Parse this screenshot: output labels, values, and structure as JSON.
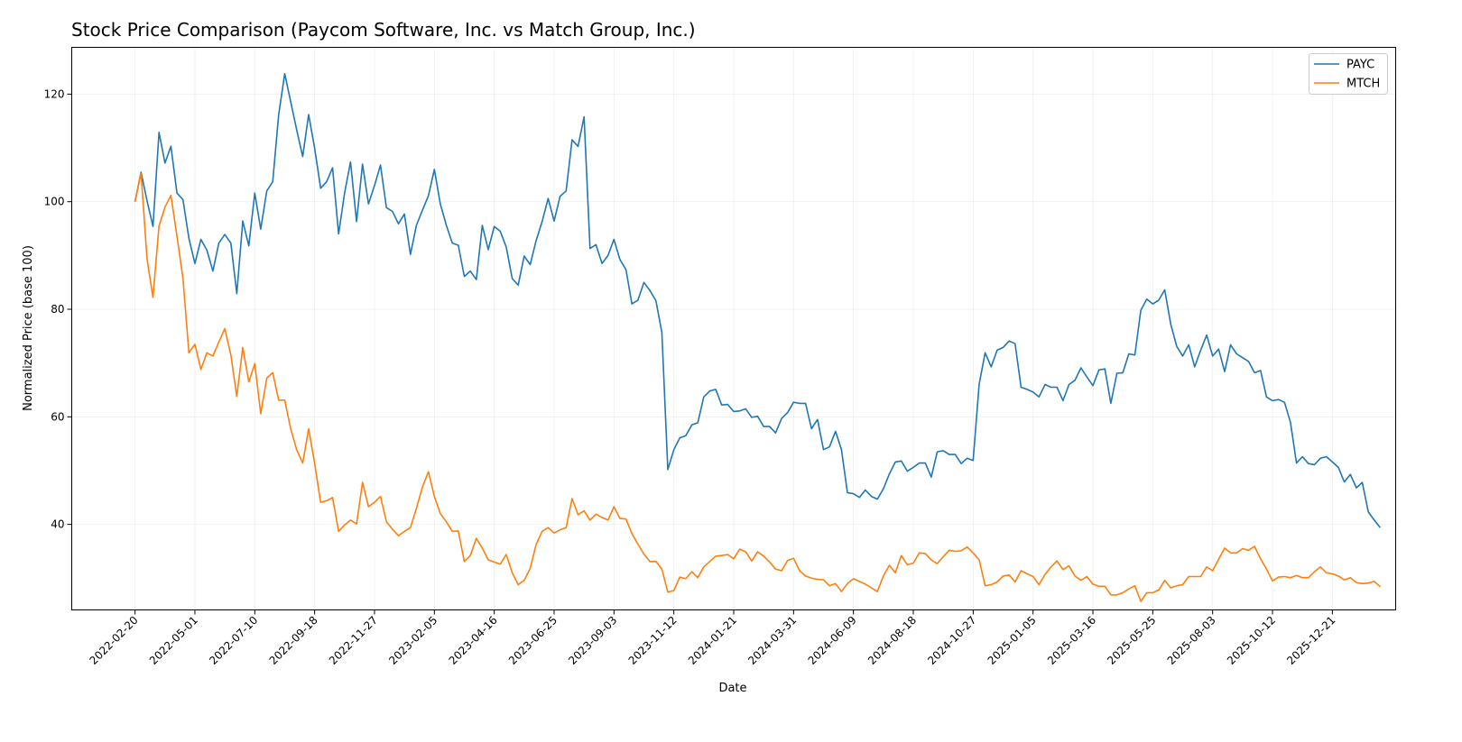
{
  "chart_data": {
    "type": "line",
    "title": "Stock Price Comparison (Paycom Software, Inc. vs Match Group, Inc.)",
    "xlabel": "Date",
    "ylabel": "Normalized Price (base 100)",
    "xlim": [
      "2021-12-08",
      "2026-03-05"
    ],
    "ylim": [
      24.1,
      128.7
    ],
    "grid": true,
    "legend_position": "top-right",
    "x_ticks": [
      "2022-02-20",
      "2022-05-01",
      "2022-07-10",
      "2022-09-18",
      "2022-11-27",
      "2023-02-05",
      "2023-04-16",
      "2023-06-25",
      "2023-09-03",
      "2023-11-12",
      "2024-01-21",
      "2024-03-31",
      "2024-06-09",
      "2024-08-18",
      "2024-10-27",
      "2025-01-05",
      "2025-03-16",
      "2025-05-25",
      "2025-08-03",
      "2025-10-12",
      "2025-12-21"
    ],
    "y_ticks": [
      40,
      60,
      80,
      100,
      120
    ],
    "x": [
      "2022-02-20",
      "2022-02-27",
      "2022-03-06",
      "2022-03-13",
      "2022-03-20",
      "2022-03-27",
      "2022-04-03",
      "2022-04-10",
      "2022-04-17",
      "2022-04-24",
      "2022-05-01",
      "2022-05-08",
      "2022-05-15",
      "2022-05-22",
      "2022-05-29",
      "2022-06-05",
      "2022-06-12",
      "2022-06-19",
      "2022-06-26",
      "2022-07-03",
      "2022-07-10",
      "2022-07-17",
      "2022-07-24",
      "2022-07-31",
      "2022-08-07",
      "2022-08-14",
      "2022-08-21",
      "2022-08-28",
      "2022-09-04",
      "2022-09-11",
      "2022-09-18",
      "2022-09-25",
      "2022-10-02",
      "2022-10-09",
      "2022-10-16",
      "2022-10-23",
      "2022-10-30",
      "2022-11-06",
      "2022-11-13",
      "2022-11-20",
      "2022-11-27",
      "2022-12-04",
      "2022-12-11",
      "2022-12-18",
      "2022-12-25",
      "2023-01-01",
      "2023-01-08",
      "2023-01-15",
      "2023-01-22",
      "2023-01-29",
      "2023-02-05",
      "2023-02-12",
      "2023-02-19",
      "2023-02-26",
      "2023-03-05",
      "2023-03-12",
      "2023-03-19",
      "2023-03-26",
      "2023-04-02",
      "2023-04-09",
      "2023-04-16",
      "2023-04-23",
      "2023-04-30",
      "2023-05-07",
      "2023-05-14",
      "2023-05-21",
      "2023-05-28",
      "2023-06-04",
      "2023-06-11",
      "2023-06-18",
      "2023-06-25",
      "2023-07-02",
      "2023-07-09",
      "2023-07-16",
      "2023-07-23",
      "2023-07-30",
      "2023-08-06",
      "2023-08-13",
      "2023-08-20",
      "2023-08-27",
      "2023-09-03",
      "2023-09-10",
      "2023-09-17",
      "2023-09-24",
      "2023-10-01",
      "2023-10-08",
      "2023-10-15",
      "2023-10-22",
      "2023-10-29",
      "2023-11-05",
      "2023-11-12",
      "2023-11-19",
      "2023-11-26",
      "2023-12-03",
      "2023-12-10",
      "2023-12-17",
      "2023-12-24",
      "2023-12-31",
      "2024-01-07",
      "2024-01-14",
      "2024-01-21",
      "2024-01-28",
      "2024-02-04",
      "2024-02-11",
      "2024-02-18",
      "2024-02-25",
      "2024-03-03",
      "2024-03-10",
      "2024-03-17",
      "2024-03-24",
      "2024-03-31",
      "2024-04-07",
      "2024-04-14",
      "2024-04-21",
      "2024-04-28",
      "2024-05-05",
      "2024-05-12",
      "2024-05-19",
      "2024-05-26",
      "2024-06-02",
      "2024-06-09",
      "2024-06-16",
      "2024-06-23",
      "2024-06-30",
      "2024-07-07",
      "2024-07-14",
      "2024-07-21",
      "2024-07-28",
      "2024-08-04",
      "2024-08-11",
      "2024-08-18",
      "2024-08-25",
      "2024-09-01",
      "2024-09-08",
      "2024-09-15",
      "2024-09-22",
      "2024-09-29",
      "2024-10-06",
      "2024-10-13",
      "2024-10-20",
      "2024-10-27",
      "2024-11-03",
      "2024-11-10",
      "2024-11-17",
      "2024-11-24",
      "2024-12-01",
      "2024-12-08",
      "2024-12-15",
      "2024-12-22",
      "2024-12-29",
      "2025-01-05",
      "2025-01-12",
      "2025-01-19",
      "2025-01-26",
      "2025-02-02",
      "2025-02-09",
      "2025-02-16",
      "2025-02-23",
      "2025-03-02",
      "2025-03-09",
      "2025-03-16",
      "2025-03-23",
      "2025-03-30",
      "2025-04-06",
      "2025-04-13",
      "2025-04-20",
      "2025-04-27",
      "2025-05-04",
      "2025-05-11",
      "2025-05-18",
      "2025-05-25",
      "2025-06-01",
      "2025-06-08",
      "2025-06-15",
      "2025-06-22",
      "2025-06-29",
      "2025-07-06",
      "2025-07-13",
      "2025-07-20",
      "2025-07-27",
      "2025-08-03",
      "2025-08-10",
      "2025-08-17",
      "2025-08-24",
      "2025-08-31",
      "2025-09-07",
      "2025-09-14",
      "2025-09-21",
      "2025-09-28",
      "2025-10-05",
      "2025-10-12",
      "2025-10-19",
      "2025-10-26",
      "2025-11-02",
      "2025-11-09",
      "2025-11-16",
      "2025-11-23",
      "2025-11-30",
      "2025-12-07",
      "2025-12-14",
      "2025-12-21",
      "2025-12-28",
      "2026-01-04",
      "2026-01-11",
      "2026-01-18",
      "2026-01-25",
      "2026-02-01",
      "2026-02-08",
      "2026-02-15"
    ],
    "series": [
      {
        "name": "PAYC",
        "color": "#1f77b4",
        "values": [
          100,
          105.5,
          100.2,
          95.4,
          112.9,
          107.2,
          110.3,
          101.6,
          100.4,
          93.2,
          88.5,
          93,
          91,
          87.1,
          92.3,
          93.9,
          92.3,
          82.9,
          96.4,
          91.8,
          101.6,
          94.9,
          102,
          103.7,
          116.2,
          123.8,
          118.6,
          113.4,
          108.4,
          116.2,
          110,
          102.5,
          103.7,
          106.3,
          94,
          101.6,
          107.4,
          96.3,
          107,
          99.6,
          103,
          106.8,
          98.9,
          98.2,
          95.9,
          97.7,
          90.2,
          95.6,
          98.4,
          101.1,
          106,
          99.6,
          95.6,
          92.3,
          91.9,
          86.1,
          87.1,
          85.5,
          95.6,
          91.1,
          95.4,
          94.5,
          91.6,
          85.7,
          84.5,
          89.9,
          88.3,
          92.8,
          96.3,
          100.6,
          96.4,
          101,
          102,
          111.5,
          110.3,
          115.8,
          91.3,
          92,
          88.5,
          90,
          93,
          89.2,
          87.4,
          81,
          81.7,
          85,
          83.5,
          81.6,
          75.7,
          50.2,
          53.9,
          56.1,
          56.5,
          58.5,
          58.9,
          63.7,
          64.8,
          65.1,
          62.2,
          62.3,
          61,
          61.1,
          61.5,
          59.9,
          60.1,
          58.2,
          58.2,
          57,
          59.7,
          60.8,
          62.7,
          62.5,
          62.5,
          57.8,
          59.5,
          53.9,
          54.4,
          57.3,
          53.9,
          45.9,
          45.7,
          45,
          46.4,
          45.2,
          44.7,
          46.6,
          49.4,
          51.6,
          51.8,
          49.9,
          50.6,
          51.4,
          51.4,
          48.8,
          53.5,
          53.7,
          53,
          53,
          51.3,
          52.3,
          51.9,
          66.1,
          71.9,
          69.3,
          72.4,
          72.9,
          74.1,
          73.6,
          65.5,
          65.1,
          64.6,
          63.7,
          66,
          65.5,
          65.5,
          63,
          66,
          66.8,
          69.1,
          67.4,
          65.8,
          68.7,
          68.9,
          62.5,
          68.1,
          68.2,
          71.7,
          71.5,
          79.8,
          81.9,
          81,
          81.7,
          83.6,
          77.2,
          73.1,
          71.3,
          73.4,
          69.3,
          72.4,
          75.2,
          71.3,
          72.6,
          68.4,
          73.4,
          71.7,
          71,
          70.3,
          68.2,
          68.6,
          63.7,
          63,
          63.2,
          62.7,
          59,
          51.4,
          52.6,
          51.3,
          51.1,
          52.3,
          52.6,
          51.6,
          50.6,
          47.9,
          49.3,
          46.8,
          47.8,
          42.3,
          40.8,
          39.4
        ]
      },
      {
        "name": "MTCH",
        "color": "#ff7f0e",
        "values": [
          100,
          105.3,
          89.4,
          82.2,
          95.5,
          99,
          101.2,
          93.6,
          85.8,
          71.9,
          73.5,
          68.8,
          71.9,
          71.3,
          73.9,
          76.4,
          71.5,
          63.8,
          72.9,
          66.5,
          69.9,
          60.6,
          67.2,
          68.2,
          63.1,
          63.1,
          57.8,
          53.9,
          51.4,
          57.8,
          51.4,
          44.1,
          44.4,
          45,
          38.7,
          39.9,
          40.8,
          40.1,
          47.8,
          43.3,
          44.1,
          45.2,
          40.5,
          39.1,
          37.9,
          38.7,
          39.4,
          43,
          46.9,
          49.8,
          45.2,
          42,
          40.5,
          38.7,
          38.8,
          33.1,
          34.2,
          37.4,
          35.6,
          33.4,
          33,
          32.6,
          34.4,
          31,
          28.8,
          29.6,
          31.8,
          36.3,
          38.7,
          39.4,
          38.4,
          39,
          39.4,
          44.8,
          41.8,
          42.5,
          40.8,
          41.9,
          41.3,
          40.8,
          43.3,
          41.1,
          41,
          38.3,
          36.3,
          34.5,
          33.1,
          33.1,
          31.7,
          27.4,
          27.7,
          30.2,
          29.9,
          31.2,
          30.1,
          32.1,
          33.1,
          34.1,
          34.2,
          34.4,
          33.6,
          35.4,
          34.9,
          33.2,
          34.9,
          34.1,
          33,
          31.7,
          31.4,
          33.3,
          33.7,
          31.4,
          30.4,
          30,
          29.8,
          29.7,
          28.6,
          29,
          27.5,
          29,
          29.9,
          29.4,
          28.9,
          28.2,
          27.5,
          30.4,
          32.4,
          31,
          34.2,
          32.5,
          32.8,
          34.7,
          34.6,
          33.4,
          32.7,
          34,
          35.2,
          35,
          35.1,
          35.8,
          34.7,
          33.4,
          28.6,
          28.8,
          29.3,
          30.4,
          30.6,
          29.3,
          31.4,
          30.8,
          30.3,
          28.8,
          30.7,
          32.1,
          33.2,
          31.6,
          32.3,
          30.4,
          29.6,
          30.3,
          28.9,
          28.5,
          28.5,
          26.9,
          26.9,
          27.3,
          28,
          28.6,
          25.7,
          27.3,
          27.3,
          27.8,
          29.6,
          28.2,
          28.6,
          28.8,
          30.3,
          30.3,
          30.3,
          32.1,
          31.4,
          33.5,
          35.6,
          34.7,
          34.7,
          35.5,
          35.2,
          35.9,
          33.6,
          31.7,
          29.5,
          30.2,
          30.3,
          30.1,
          30.5,
          30.1,
          30.1,
          31.2,
          32.1,
          31,
          30.8,
          30.4,
          29.7,
          30.1,
          29.2,
          29,
          29.1,
          29.4,
          28.4
        ]
      }
    ]
  }
}
